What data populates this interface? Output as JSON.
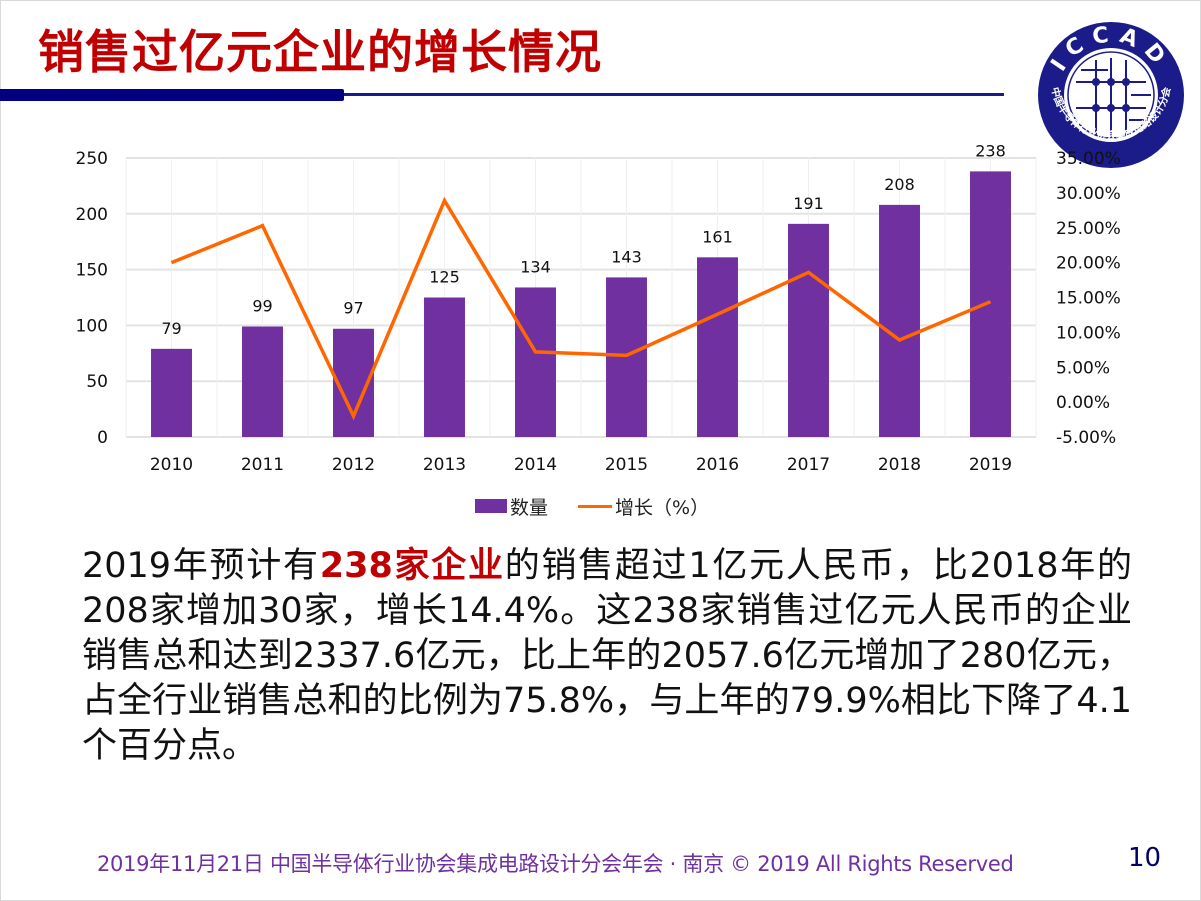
{
  "title": "销售过亿元企业的增长情况",
  "logo": {
    "icon": "iccad-logo-icon",
    "text_top": "ICCAD",
    "text_bottom": "中国半导体行业协会集成电路设计分会",
    "colors": {
      "ring": "#1b1b8a",
      "inner": "#ffffff"
    }
  },
  "chart_data": {
    "type": "bar",
    "combo": "bar+line",
    "categories": [
      "2010",
      "2011",
      "2012",
      "2013",
      "2014",
      "2015",
      "2016",
      "2017",
      "2018",
      "2019"
    ],
    "series": [
      {
        "name": "数量",
        "type": "bar",
        "axis": "left",
        "color": "#7030a0",
        "values": [
          79,
          99,
          97,
          125,
          134,
          143,
          161,
          191,
          208,
          238
        ],
        "data_labels": [
          "79",
          "99",
          "97",
          "125",
          "134",
          "143",
          "161",
          "191",
          "208",
          "238"
        ]
      },
      {
        "name": "增长（%）",
        "type": "line",
        "axis": "right",
        "color": "#ff6600",
        "values": [
          20.0,
          25.3,
          -2.0,
          28.9,
          7.2,
          6.7,
          12.6,
          18.6,
          8.9,
          14.4
        ]
      }
    ],
    "left_axis": {
      "ylim": [
        0,
        250
      ],
      "ticks": [
        "0",
        "50",
        "100",
        "150",
        "200",
        "250"
      ]
    },
    "right_axis": {
      "ylim": [
        -5,
        35
      ],
      "ticks": [
        "-5.00%",
        "0.00%",
        "5.00%",
        "10.00%",
        "15.00%",
        "20.00%",
        "25.00%",
        "30.00%",
        "35.00%"
      ]
    },
    "title": "",
    "xlabel": "",
    "ylabel": "",
    "grid": true,
    "legend_position": "bottom"
  },
  "legend": {
    "bar_label": "数量",
    "line_label": "增长（%）"
  },
  "body": {
    "seg1": "2019年预计有",
    "highlight": "238家企业",
    "seg2": "的销售超过1亿元人民币，比2018年的208家增加30家，增长14.4%。这238家销售过亿元人民币的企业销售总和达到2337.6亿元，比上年的2057.6亿元增加了280亿元，占全行业销售总和的比例为75.8%，与上年的79.9%相比下降了4.1个百分点。"
  },
  "footer": "2019年11月21日 中国半导体行业协会集成电路设计分会年会 · 南京 © 2019 All Rights Reserved",
  "page_number": "10"
}
